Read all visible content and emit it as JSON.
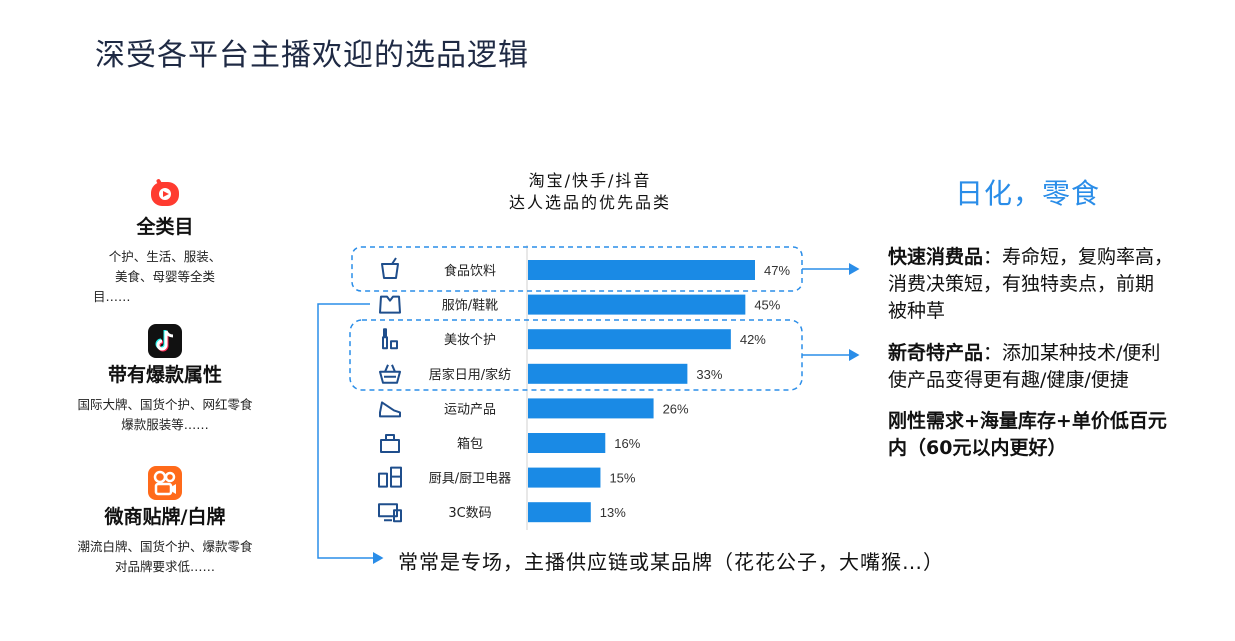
{
  "title": "深受各平台主播欢迎的选品逻辑",
  "platforms": [
    {
      "name": "全类目",
      "desc_lines": [
        "个护、生活、服装、",
        "美食、母婴等全类",
        "目……"
      ],
      "icon": "taobao-live-icon",
      "color": "#ff3b30"
    },
    {
      "name": "带有爆款属性",
      "desc_lines": [
        "国际大牌、国货个护、网红零食",
        "爆款服装等……"
      ],
      "icon": "douyin-icon",
      "color": "#111111"
    },
    {
      "name": "微商贴牌/白牌",
      "desc_lines": [
        "潮流白牌、国货个护、爆款零食",
        "对品牌要求低……"
      ],
      "icon": "kuaishou-icon",
      "color": "#ff6a1a"
    }
  ],
  "chart_head": {
    "line1": "淘宝/快手/抖音",
    "line2": "达人选品的优先品类"
  },
  "highlight": "日化，零食",
  "right_texts": {
    "t1_bold": "快速消费品",
    "t1_rest_line1": "：寿命短，复购率高，",
    "t1_line2": "消费决策短，有独特卖点，前期",
    "t1_line3": "被种草",
    "t2_bold": "新奇特产品",
    "t2_rest_line1": "：添加某种技术/便利",
    "t2_line2": "使产品变得更有趣/健康/便捷",
    "t3_line1": "刚性需求+海量库存+单价低百元",
    "t3_line2": "内（60元以内更好）"
  },
  "bottom_note": "常常是专场，主播供应链或某品牌（花花公子，大嘴猴…）",
  "colors": {
    "bar": "#1a8ae5",
    "dash": "#2a8de8",
    "arrow": "#2a8de8",
    "title": "#1f2a44"
  },
  "chart_data": {
    "type": "bar",
    "orientation": "horizontal",
    "categories": [
      "食品饮料",
      "服饰/鞋靴",
      "美妆个护",
      "居家日用/家纺",
      "运动产品",
      "箱包",
      "厨具/厨卫电器",
      "3C数码"
    ],
    "category_icons": [
      "drink-icon",
      "shirt-icon",
      "cosmetics-icon",
      "basket-icon",
      "sneaker-icon",
      "bag-icon",
      "kitchen-appliance-icon",
      "devices-icon"
    ],
    "values": [
      47,
      45,
      42,
      33,
      26,
      16,
      15,
      13
    ],
    "value_labels": [
      "47%",
      "45%",
      "42%",
      "33%",
      "26%",
      "16%",
      "15%",
      "13%"
    ],
    "xlim": [
      0,
      50
    ],
    "title": "",
    "xlabel": "",
    "ylabel": ""
  }
}
